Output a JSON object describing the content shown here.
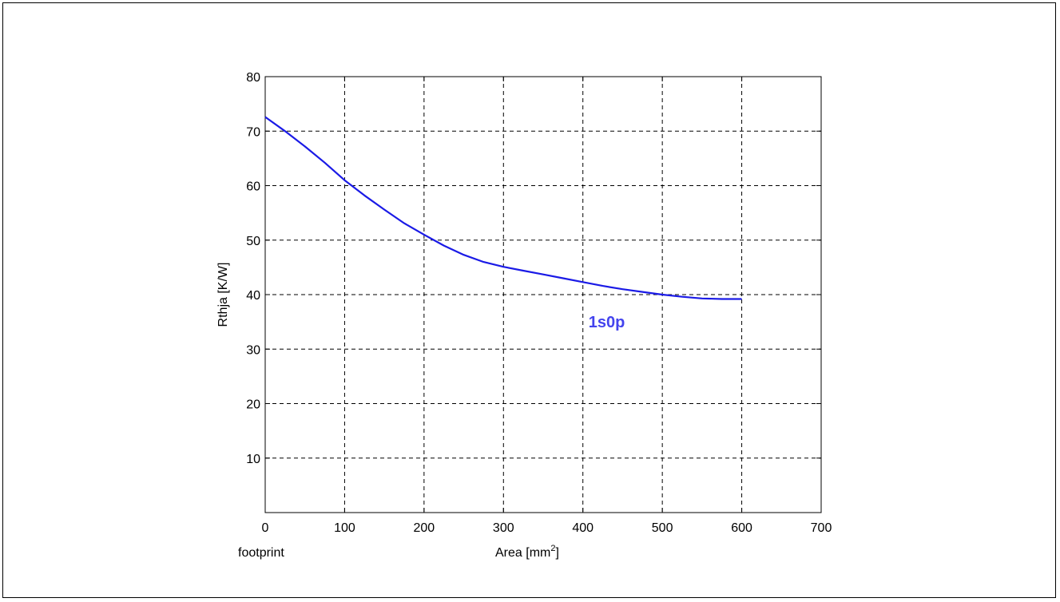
{
  "chart_data": {
    "type": "line",
    "xlabel": "Area [mm",
    "xlabel_superscript": "2",
    "xlabel_suffix": "]",
    "ylabel": "Rthja [K/W]",
    "x_annotation": "footprint",
    "xlim": [
      0,
      700
    ],
    "ylim": [
      0,
      80
    ],
    "xticks": [
      "0",
      "100",
      "200",
      "300",
      "400",
      "500",
      "600",
      "700"
    ],
    "yticks": [
      "10",
      "20",
      "30",
      "40",
      "50",
      "60",
      "70",
      "80"
    ],
    "grid": true,
    "grid_style": "dashed",
    "series": [
      {
        "name": "1s0p",
        "color": "#1a1ae6",
        "x": [
          0,
          25,
          50,
          75,
          100,
          125,
          150,
          175,
          200,
          225,
          250,
          275,
          300,
          325,
          350,
          375,
          400,
          425,
          450,
          475,
          500,
          525,
          550,
          575,
          600
        ],
        "y": [
          72.6,
          70.0,
          67.2,
          64.2,
          61.0,
          58.2,
          55.6,
          53.1,
          51.0,
          49.0,
          47.3,
          46.0,
          45.1,
          44.4,
          43.7,
          43.0,
          42.3,
          41.6,
          41.0,
          40.5,
          40.0,
          39.6,
          39.3,
          39.2,
          39.2
        ]
      }
    ],
    "annotations": [
      {
        "text": "1s0p",
        "x": 430,
        "y": 34,
        "color": "#4444ee"
      }
    ]
  }
}
